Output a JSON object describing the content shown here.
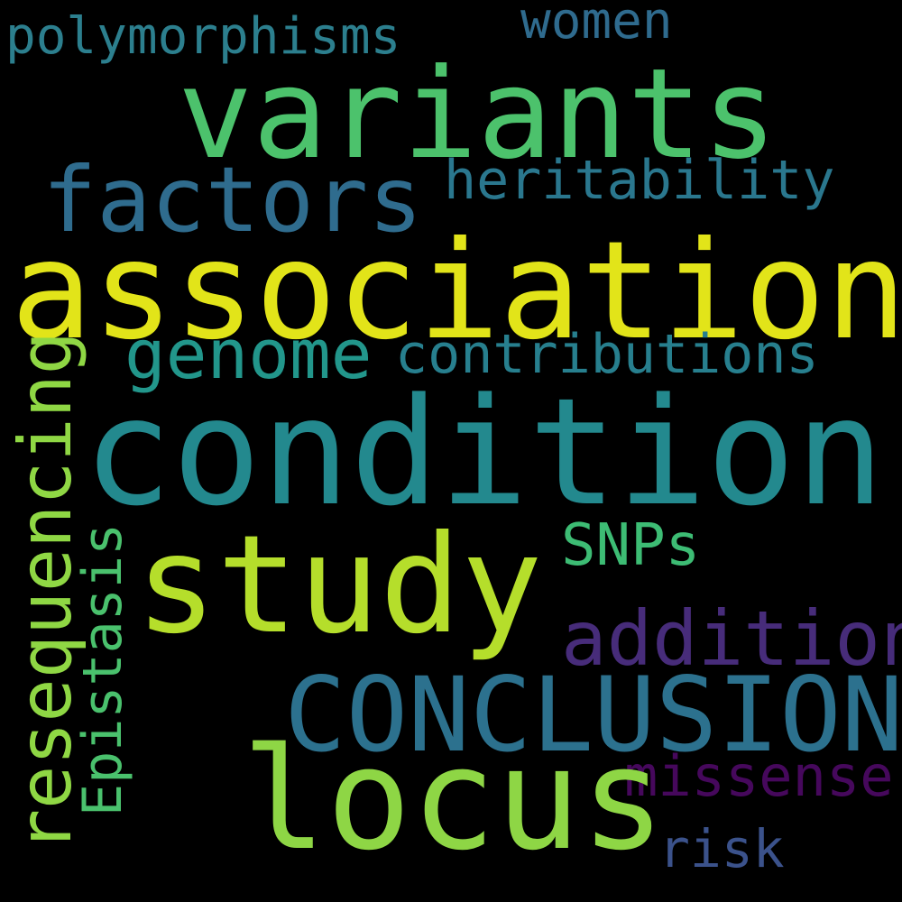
{
  "background": "#000000",
  "words": [
    {
      "text": "polymorphisms",
      "color": "#2c7f8e",
      "orientation": "horizontal"
    },
    {
      "text": "women",
      "color": "#2f6b8e",
      "orientation": "horizontal"
    },
    {
      "text": "variants",
      "color": "#4cc26c",
      "orientation": "horizontal"
    },
    {
      "text": "factors",
      "color": "#2f6c8e",
      "orientation": "horizontal"
    },
    {
      "text": "heritability",
      "color": "#2a778e",
      "orientation": "horizontal"
    },
    {
      "text": "association",
      "color": "#e2e419",
      "orientation": "horizontal"
    },
    {
      "text": "genome",
      "color": "#22968b",
      "orientation": "horizontal"
    },
    {
      "text": "contributions",
      "color": "#277f8e",
      "orientation": "horizontal"
    },
    {
      "text": "condition",
      "color": "#23898e",
      "orientation": "horizontal"
    },
    {
      "text": "resequencing",
      "color": "#8fd744",
      "orientation": "vertical"
    },
    {
      "text": "Epistasis",
      "color": "#4ac16d",
      "orientation": "vertical"
    },
    {
      "text": "SNPs",
      "color": "#3dbc74",
      "orientation": "horizontal"
    },
    {
      "text": "study",
      "color": "#b5de2b",
      "orientation": "horizontal"
    },
    {
      "text": "addition",
      "color": "#472c7a",
      "orientation": "horizontal"
    },
    {
      "text": "CONCLUSIONS",
      "color": "#2c718e",
      "orientation": "horizontal"
    },
    {
      "text": "missense",
      "color": "#46085c",
      "orientation": "horizontal"
    },
    {
      "text": "locus",
      "color": "#8ed645",
      "orientation": "horizontal"
    },
    {
      "text": "risk",
      "color": "#3b528b",
      "orientation": "horizontal"
    }
  ]
}
